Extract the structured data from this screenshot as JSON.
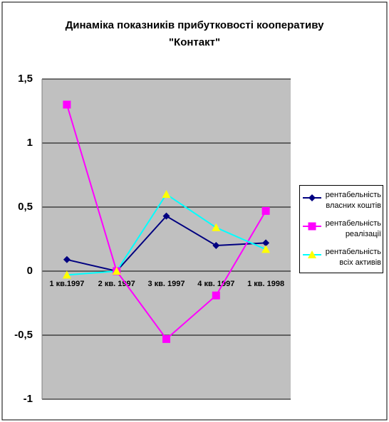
{
  "chart_data": {
    "type": "line",
    "title": [
      "Динаміка показників прибутковості кооперативу",
      "\"Контакт\""
    ],
    "categories": [
      "1 кв.1997",
      "2 кв. 1997",
      "3 кв. 1997",
      "4 кв. 1997",
      "1 кв. 1998"
    ],
    "series": [
      {
        "name": "рентабельність власних коштів",
        "color": "#000080",
        "marker": "diamond",
        "marker_color": "#000080",
        "values": [
          0.09,
          0.0,
          0.43,
          0.2,
          0.22
        ]
      },
      {
        "name": "рентабельність реалізації",
        "color": "#ff00ff",
        "marker": "square",
        "marker_color": "#ff00ff",
        "values": [
          1.3,
          0.0,
          -0.53,
          -0.19,
          0.47
        ]
      },
      {
        "name": "рентабельність всіх активів",
        "color": "#00ffff",
        "marker": "triangle",
        "marker_color": "#ffff00",
        "values": [
          -0.03,
          0.0,
          0.6,
          0.34,
          0.17
        ]
      }
    ],
    "ylim": [
      -1,
      1.5
    ],
    "yticks": [
      -1,
      {
        "value": -0.5,
        "label": "-0,5"
      },
      0,
      {
        "value": 0.5,
        "label": "0,5"
      },
      1,
      {
        "value": 1.5,
        "label": "1,5"
      }
    ],
    "grid": true,
    "legend": "right",
    "plot_background": "#c0c0c0"
  }
}
